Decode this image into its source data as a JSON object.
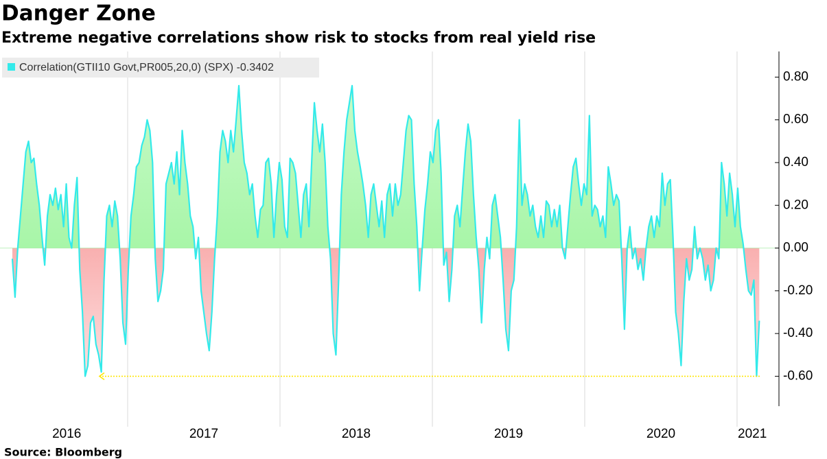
{
  "chart_data": {
    "type": "area",
    "title": "Danger Zone",
    "subtitle": "Extreme negative correlations show risk to stocks from real yield rise",
    "source": "Source: Bloomberg",
    "x": [
      2016.243,
      2016.2607,
      2016.2784,
      2016.2961,
      2016.3138,
      2016.3315,
      2016.3492,
      2016.3669,
      2016.3846,
      2016.4023,
      2016.42,
      2016.4377,
      2016.4554,
      2016.4731,
      2016.4908,
      2016.5085,
      2016.5262,
      2016.5439,
      2016.5616,
      2016.5793,
      2016.597,
      2016.6147,
      2016.6324,
      2016.6501,
      2016.6678,
      2016.6855,
      2016.7032,
      2016.7209,
      2016.7386,
      2016.7563,
      2016.774,
      2016.7917,
      2016.8094,
      2016.8271,
      2016.8448,
      2016.8625,
      2016.8802,
      2016.8979,
      2016.9156,
      2016.9333,
      2016.951,
      2016.9687,
      2016.9864,
      2017.0041,
      2017.0218,
      2017.0395,
      2017.0572,
      2017.0749,
      2017.0926,
      2017.1103,
      2017.128,
      2017.1457,
      2017.1634,
      2017.1811,
      2017.1988,
      2017.2165,
      2017.2342,
      2017.2519,
      2017.2696,
      2017.2873,
      2017.305,
      2017.3227,
      2017.3404,
      2017.3581,
      2017.3758,
      2017.3935,
      2017.4112,
      2017.4289,
      2017.4466,
      2017.4643,
      2017.482,
      2017.4997,
      2017.5174,
      2017.5351,
      2017.5528,
      2017.5705,
      2017.5882,
      2017.6059,
      2017.6236,
      2017.6413,
      2017.659,
      2017.6767,
      2017.6944,
      2017.7121,
      2017.7298,
      2017.7475,
      2017.7652,
      2017.7829,
      2017.8006,
      2017.8183,
      2017.836,
      2017.8537,
      2017.8714,
      2017.8891,
      2017.9068,
      2017.9245,
      2017.9422,
      2017.9599,
      2017.9776,
      2017.9953,
      2018.013,
      2018.0307,
      2018.0484,
      2018.0661,
      2018.0838,
      2018.1015,
      2018.1192,
      2018.1369,
      2018.1546,
      2018.1723,
      2018.19,
      2018.2077,
      2018.2254,
      2018.2431,
      2018.2608,
      2018.2785,
      2018.2962,
      2018.3139,
      2018.3316,
      2018.3493,
      2018.367,
      2018.3847,
      2018.4024,
      2018.4201,
      2018.4378,
      2018.4555,
      2018.4732,
      2018.4909,
      2018.5086,
      2018.5263,
      2018.544,
      2018.5617,
      2018.5794,
      2018.5971,
      2018.6148,
      2018.6325,
      2018.6502,
      2018.6679,
      2018.6856,
      2018.7033,
      2018.721,
      2018.7387,
      2018.7564,
      2018.7741,
      2018.7918,
      2018.8095,
      2018.8272,
      2018.8449,
      2018.8626,
      2018.8803,
      2018.898,
      2018.9157,
      2018.9334,
      2018.9511,
      2018.9688,
      2018.9865,
      2019.0042,
      2019.0219,
      2019.0396,
      2019.0573,
      2019.075,
      2019.0927,
      2019.1104,
      2019.1281,
      2019.1458,
      2019.1635,
      2019.1812,
      2019.1989,
      2019.2166,
      2019.2343,
      2019.252,
      2019.2697,
      2019.2874,
      2019.3051,
      2019.3228,
      2019.3405,
      2019.3582,
      2019.3759,
      2019.3936,
      2019.4113,
      2019.429,
      2019.4467,
      2019.4644,
      2019.4821,
      2019.4998,
      2019.5175,
      2019.5352,
      2019.5529,
      2019.5706,
      2019.5883,
      2019.606,
      2019.6237,
      2019.6414,
      2019.6591,
      2019.6768,
      2019.6945,
      2019.7122,
      2019.7299,
      2019.7476,
      2019.7653,
      2019.783,
      2019.8007,
      2019.8184,
      2019.8361,
      2019.8538,
      2019.8715,
      2019.8892,
      2019.9069,
      2019.9246,
      2019.9423,
      2019.96,
      2019.9777,
      2019.9954,
      2020.0131,
      2020.0308,
      2020.0485,
      2020.0662,
      2020.0839,
      2020.1016,
      2020.1193,
      2020.137,
      2020.1547,
      2020.1724,
      2020.1901,
      2020.2078,
      2020.2255,
      2020.2432,
      2020.2609,
      2020.2786,
      2020.2963,
      2020.314,
      2020.3317,
      2020.3494,
      2020.3671,
      2020.3848,
      2020.4025,
      2020.4202,
      2020.4379,
      2020.4556,
      2020.4733,
      2020.491,
      2020.5087,
      2020.5264,
      2020.5441,
      2020.5618,
      2020.5795,
      2020.5972,
      2020.6149,
      2020.6326,
      2020.6503,
      2020.668,
      2020.6857,
      2020.7034,
      2020.7211,
      2020.7388,
      2020.7565,
      2020.7742,
      2020.7919,
      2020.8096,
      2020.8273,
      2020.845,
      2020.8627,
      2020.8804,
      2020.8981,
      2020.9158,
      2020.9335,
      2020.9512,
      2020.9689,
      2020.9866,
      2021.0043,
      2021.022,
      2021.0397,
      2021.0574,
      2021.0751,
      2021.0928,
      2021.1105,
      2021.1282,
      2021.1459
    ],
    "series": [
      {
        "name": "Correlation(GTII10 Govt,PR005,20,0) (SPX) -0.3402",
        "color": "#33eaea",
        "values": [
          -0.05,
          -0.23,
          0,
          0.15,
          0.3,
          0.45,
          0.5,
          0.4,
          0.42,
          0.3,
          0.2,
          0.05,
          -0.08,
          0.15,
          0.25,
          0.2,
          0.28,
          0.18,
          0.25,
          0.1,
          0.3,
          0.05,
          0,
          0.2,
          0.33,
          -0.1,
          -0.3,
          -0.6,
          -0.55,
          -0.35,
          -0.32,
          -0.45,
          -0.5,
          -0.58,
          -0.15,
          0.15,
          0.2,
          0.1,
          0.22,
          0.15,
          -0.05,
          -0.35,
          -0.45,
          -0.1,
          0.15,
          0.25,
          0.38,
          0.4,
          0.48,
          0.52,
          0.6,
          0.55,
          0.4,
          -0.05,
          -0.25,
          -0.2,
          -0.1,
          0.3,
          0.35,
          0.4,
          0.3,
          0.45,
          0.25,
          0.55,
          0.4,
          0.3,
          0.15,
          0.1,
          -0.05,
          0.05,
          -0.2,
          -0.3,
          -0.4,
          -0.48,
          -0.3,
          -0.05,
          0.15,
          0.45,
          0.55,
          0.5,
          0.4,
          0.55,
          0.45,
          0.6,
          0.76,
          0.55,
          0.4,
          0.35,
          0.25,
          0.3,
          0.15,
          0.05,
          0.18,
          0.2,
          0.4,
          0.42,
          0.3,
          0.05,
          0.25,
          0.4,
          0.32,
          0.1,
          0.05,
          0.42,
          0.4,
          0.35,
          0.2,
          0.05,
          0.25,
          0.3,
          0.1,
          0.4,
          0.68,
          0.55,
          0.45,
          0.58,
          0.4,
          0.1,
          -0.05,
          -0.4,
          -0.5,
          -0.15,
          0.25,
          0.45,
          0.6,
          0.68,
          0.76,
          0.55,
          0.45,
          0.38,
          0.3,
          0.2,
          0.05,
          0.25,
          0.3,
          0.2,
          0.1,
          0.22,
          0.05,
          0.25,
          0.3,
          0.15,
          0.3,
          0.2,
          0.25,
          0.4,
          0.55,
          0.62,
          0.6,
          0.3,
          0.1,
          -0.2,
          0,
          0.18,
          0.3,
          0.45,
          0.4,
          0.55,
          0.6,
          0.35,
          -0.08,
          -0.02,
          -0.25,
          -0.1,
          0.15,
          0.2,
          0.1,
          0.28,
          0.45,
          0.58,
          0.5,
          0.25,
          0.05,
          -0.1,
          -0.35,
          -0.1,
          0.05,
          -0.05,
          0.2,
          0.25,
          0.15,
          0.05,
          -0.15,
          -0.38,
          -0.48,
          -0.2,
          -0.15,
          0.1,
          0.6,
          0.2,
          0.3,
          0.25,
          0.15,
          0.2,
          0.1,
          0.05,
          0.15,
          0.05,
          0.22,
          0.2,
          0.1,
          0.18,
          0.1,
          0.2,
          0,
          -0.05,
          0.1,
          0.25,
          0.38,
          0.42,
          0.3,
          0.2,
          0.3,
          0.25,
          0.62,
          0.15,
          0.2,
          0.18,
          0.1,
          0.15,
          0.05,
          0.38,
          0.3,
          0.2,
          0.25,
          0.22,
          -0.05,
          -0.38,
          0,
          0.1,
          -0.05,
          0,
          -0.1,
          -0.05,
          -0.15,
          0,
          0.1,
          0.15,
          0.05,
          0.15,
          0.1,
          0.35,
          0.2,
          0.3,
          0.32,
          0.05,
          -0.3,
          -0.4,
          -0.55,
          -0.25,
          -0.05,
          -0.15,
          -0.1,
          0.1,
          -0.05,
          0,
          -0.05,
          -0.15,
          -0.08,
          -0.2,
          -0.15,
          0,
          -0.05,
          0.4,
          0.3,
          0.15,
          0.35,
          0.25,
          0.1,
          0.28,
          0.1,
          0.02,
          -0.1,
          -0.2,
          -0.22,
          -0.15,
          -0.6,
          -0.34
        ]
      }
    ],
    "fill_colors": {
      "positive": "#8ef28e",
      "negative": "#f47272"
    },
    "xlim": [
      2016.162,
      2021.275
    ],
    "xticks": [
      {
        "value": 2016.6,
        "label": "2016"
      },
      {
        "value": 2017.5,
        "label": "2017"
      },
      {
        "value": 2018.5,
        "label": "2018"
      },
      {
        "value": 2019.5,
        "label": "2019"
      },
      {
        "value": 2020.5,
        "label": "2020"
      },
      {
        "value": 2021.1,
        "label": "2021"
      }
    ],
    "xgrid": [
      2017,
      2018,
      2019,
      2020,
      2021
    ],
    "ylim": [
      -0.74,
      0.92
    ],
    "yticks": [
      {
        "value": 0.8,
        "label": "0.80"
      },
      {
        "value": 0.6,
        "label": "0.60"
      },
      {
        "value": 0.4,
        "label": "0.40"
      },
      {
        "value": 0.2,
        "label": "0.20"
      },
      {
        "value": 0,
        "label": "0.00"
      },
      {
        "value": -0.2,
        "label": "-0.20"
      },
      {
        "value": -0.4,
        "label": "-0.40"
      },
      {
        "value": -0.6,
        "label": "-0.60"
      }
    ],
    "y_axis_side": "right",
    "reference_line": {
      "value": -0.6,
      "x": [
        2016.815,
        2021.154
      ],
      "color": "#ffe600"
    }
  }
}
